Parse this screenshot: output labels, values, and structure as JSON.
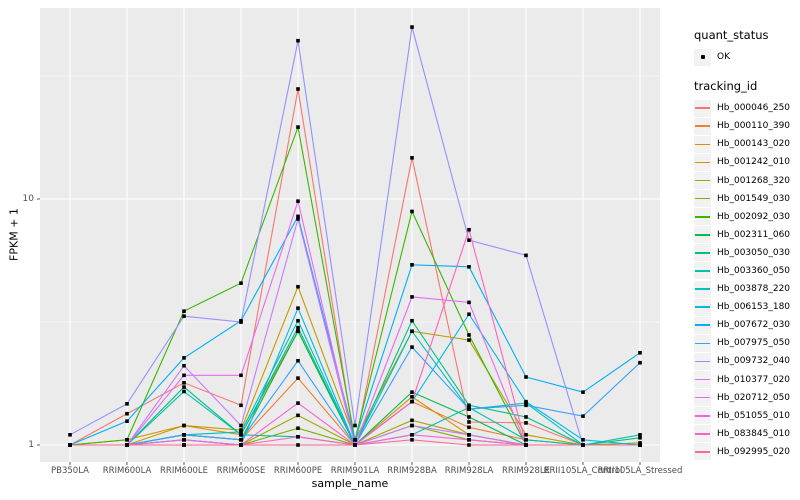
{
  "chart_data": {
    "type": "line",
    "title": "",
    "xlabel": "sample_name",
    "ylabel": "FPKM + 1",
    "y_scale": "log10",
    "y_ticks": [
      1,
      10
    ],
    "y_minor_ticks": [
      3.162,
      31.62
    ],
    "ylim": [
      0.85,
      60
    ],
    "grid": true,
    "panel_bg": "#EBEBEB",
    "grid_color": "#FFFFFF",
    "point_color": "#000000",
    "tick_color": "#333333",
    "categories": [
      "PB350LA",
      "RRIM600LA",
      "RRIM600LE",
      "RRIM600SE",
      "RRIM600PE",
      "RRIM901LA",
      "RRIM928BA",
      "RRIM928LA",
      "RRIM928LE",
      "RRII105LA_Control",
      "RRII105LA_Stressed"
    ],
    "series": [
      {
        "name": "Hb_000046_250",
        "color": "#F8766D",
        "values": [
          1.0,
          1.34,
          1.79,
          1.45,
          28,
          1.0,
          14.7,
          1.24,
          1.23,
          1.0,
          1.0
        ]
      },
      {
        "name": "Hb_000110_390",
        "color": "#EA8331",
        "values": [
          1.0,
          1.0,
          1.1,
          1.05,
          1.87,
          1.0,
          1.5,
          1.18,
          1.05,
          1.0,
          1.0
        ]
      },
      {
        "name": "Hb_000143_020",
        "color": "#D89000",
        "values": [
          1.0,
          1.05,
          1.2,
          1.1,
          2.9,
          1.0,
          1.57,
          1.1,
          1.0,
          1.0,
          1.0
        ]
      },
      {
        "name": "Hb_001242_010",
        "color": "#C09B00",
        "values": [
          1.0,
          1.0,
          1.2,
          1.15,
          4.4,
          1.05,
          2.9,
          2.67,
          1.1,
          1.0,
          1.0
        ]
      },
      {
        "name": "Hb_001268_320",
        "color": "#A3A500",
        "values": [
          1.0,
          1.0,
          1.05,
          1.0,
          1.32,
          1.0,
          1.26,
          1.1,
          1.0,
          1.0,
          1.0
        ]
      },
      {
        "name": "Hb_001549_030",
        "color": "#7CAE00",
        "values": [
          1.0,
          1.0,
          1.0,
          1.0,
          1.17,
          1.0,
          1.2,
          1.05,
          1.0,
          1.0,
          1.02
        ]
      },
      {
        "name": "Hb_002092_030",
        "color": "#39B600",
        "values": [
          1.0,
          1.05,
          3.5,
          4.55,
          19.6,
          1.05,
          8.9,
          2.8,
          1.0,
          1.0,
          1.0
        ]
      },
      {
        "name": "Hb_002311_060",
        "color": "#00BB4E",
        "values": [
          1.0,
          1.0,
          1.1,
          1.05,
          2.9,
          1.0,
          1.64,
          1.3,
          1.0,
          1.0,
          1.0
        ]
      },
      {
        "name": "Hb_003050_030",
        "color": "#00C087",
        "values": [
          1.0,
          1.0,
          1.72,
          1.1,
          3.0,
          1.0,
          3.2,
          1.45,
          1.3,
          1.0,
          1.07
        ]
      },
      {
        "name": "Hb_003360_050",
        "color": "#00C1A7",
        "values": [
          1.0,
          1.0,
          1.65,
          1.1,
          1.08,
          1.0,
          1.1,
          1.42,
          1.05,
          1.0,
          1.1
        ]
      },
      {
        "name": "Hb_003878_220",
        "color": "#00BFC4",
        "values": [
          1.0,
          1.0,
          1.1,
          1.13,
          3.2,
          1.0,
          2.9,
          1.4,
          1.48,
          1.0,
          1.0
        ]
      },
      {
        "name": "Hb_006153_180",
        "color": "#00BAE0",
        "values": [
          1.0,
          1.0,
          1.05,
          1.0,
          3.6,
          1.0,
          1.5,
          3.4,
          1.5,
          1.05,
          1.0
        ]
      },
      {
        "name": "Hb_007672_030",
        "color": "#00B0F6",
        "values": [
          1.0,
          1.25,
          2.26,
          3.2,
          8.5,
          1.05,
          5.4,
          5.3,
          1.89,
          1.64,
          2.37
        ]
      },
      {
        "name": "Hb_007975_050",
        "color": "#35A2FF",
        "values": [
          1.0,
          1.0,
          1.1,
          1.05,
          2.2,
          1.0,
          2.5,
          1.4,
          1.45,
          1.31,
          2.16
        ]
      },
      {
        "name": "Hb_009732_040",
        "color": "#9590FF",
        "values": [
          1.1,
          1.47,
          3.34,
          3.16,
          44,
          1.2,
          50,
          6.8,
          5.9,
          1.0,
          1.0
        ]
      },
      {
        "name": "Hb_010377_020",
        "color": "#C77CFF",
        "values": [
          1.0,
          1.0,
          2.1,
          1.2,
          8.3,
          1.0,
          1.2,
          1.1,
          1.0,
          1.0,
          1.0
        ]
      },
      {
        "name": "Hb_020712_050",
        "color": "#E76BF3",
        "values": [
          1.0,
          1.0,
          1.92,
          1.92,
          9.8,
          1.0,
          4.0,
          3.8,
          1.0,
          1.0,
          1.0
        ]
      },
      {
        "name": "Hb_051055_010",
        "color": "#FA62DB",
        "values": [
          1.0,
          1.0,
          1.05,
          1.0,
          1.48,
          1.0,
          1.1,
          1.05,
          1.0,
          1.0,
          1.0
        ]
      },
      {
        "name": "Hb_083845_010",
        "color": "#FF62BC",
        "values": [
          1.0,
          1.0,
          1.0,
          1.0,
          1.08,
          1.0,
          1.5,
          7.5,
          1.0,
          1.0,
          1.0
        ]
      },
      {
        "name": "Hb_092995_020",
        "color": "#FF6A98",
        "values": [
          1.0,
          1.0,
          1.0,
          1.0,
          1.0,
          1.0,
          1.05,
          1.0,
          1.0,
          1.0,
          1.0
        ]
      }
    ],
    "legend_position": "right"
  },
  "legend": {
    "quant_title": "quant_status",
    "quant_items": [
      {
        "label": "OK",
        "marker": "black-point"
      }
    ],
    "tracking_title": "tracking_id"
  }
}
